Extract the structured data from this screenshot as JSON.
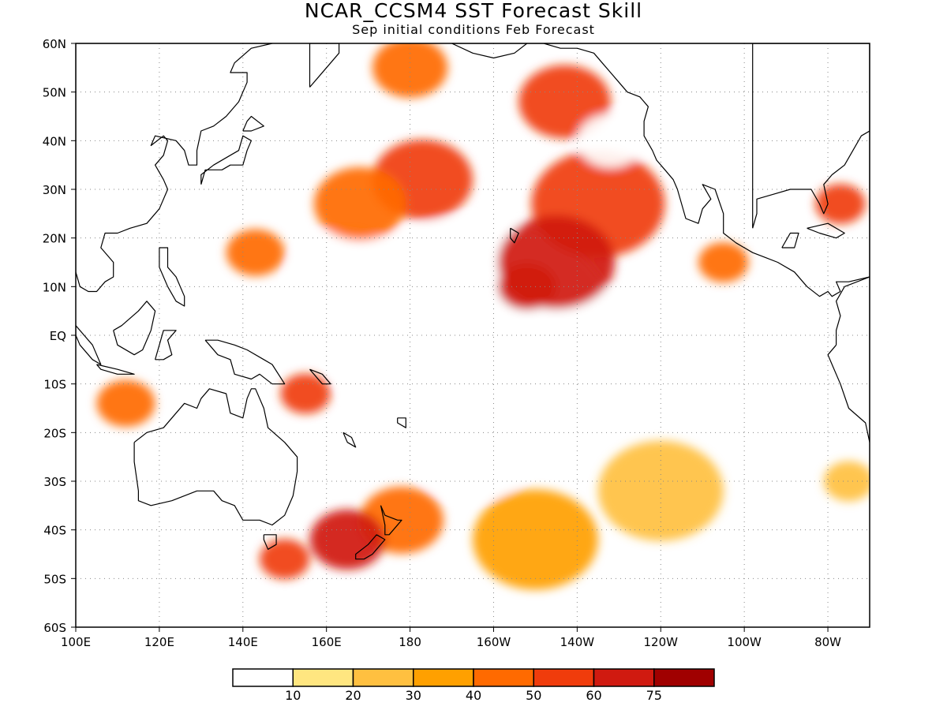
{
  "title": "NCAR_CCSM4 SST Forecast Skill",
  "subtitle": "Sep initial conditions  Feb Forecast",
  "map": {
    "projection": "cylindrical-equidistant",
    "lon_range_east": [
      100,
      290
    ],
    "lat_range": [
      -60,
      60
    ],
    "grid": "dotted",
    "lat_ticks": [
      "60N",
      "50N",
      "40N",
      "30N",
      "20N",
      "10N",
      "EQ",
      "10S",
      "20S",
      "30S",
      "40S",
      "50S",
      "60S"
    ],
    "lon_ticks": [
      "100E",
      "120E",
      "140E",
      "160E",
      "180",
      "160W",
      "140W",
      "120W",
      "100W",
      "80W"
    ]
  },
  "colorbar": {
    "colors": [
      "#ffffff",
      "#ffe680",
      "#ffc040",
      "#ffa000",
      "#ff6a00",
      "#f03c0c",
      "#d01a10",
      "#a00000"
    ],
    "labels": [
      "10",
      "20",
      "30",
      "40",
      "50",
      "60",
      "75"
    ]
  },
  "chart_data": {
    "type": "heatmap",
    "title": "NCAR_CCSM4 SST Forecast Skill",
    "subtitle": "Sep initial conditions  Feb Forecast",
    "xlabel": "",
    "ylabel": "",
    "x_range_deg_east": [
      100,
      290
    ],
    "y_range_deg": [
      -60,
      60
    ],
    "contour_levels": [
      10,
      20,
      30,
      40,
      50,
      60,
      75
    ],
    "regions": [
      {
        "lon": 215,
        "lat": 15,
        "skill": 60,
        "r": 14
      },
      {
        "lon": 225,
        "lat": 27,
        "skill": 55,
        "r": 16
      },
      {
        "lon": 217,
        "lat": 48,
        "skill": 55,
        "r": 11
      },
      {
        "lon": 208,
        "lat": 10,
        "skill": 62,
        "r": 7
      },
      {
        "lon": 228,
        "lat": 40,
        "skill": 5,
        "r": 8
      },
      {
        "lon": 183,
        "lat": 32,
        "skill": 50,
        "r": 12
      },
      {
        "lon": 168,
        "lat": 27,
        "skill": 45,
        "r": 11
      },
      {
        "lon": 180,
        "lat": 55,
        "skill": 45,
        "r": 9
      },
      {
        "lon": 143,
        "lat": 17,
        "skill": 45,
        "r": 7
      },
      {
        "lon": 165,
        "lat": 12,
        "skill": 5,
        "r": 14
      },
      {
        "lon": 195,
        "lat": 0,
        "skill": 5,
        "r": 35
      },
      {
        "lon": 165,
        "lat": -42,
        "skill": 60,
        "r": 9
      },
      {
        "lon": 178,
        "lat": -38,
        "skill": 45,
        "r": 10
      },
      {
        "lon": 150,
        "lat": -46,
        "skill": 50,
        "r": 6
      },
      {
        "lon": 155,
        "lat": -12,
        "skill": 50,
        "r": 6
      },
      {
        "lon": 112,
        "lat": -14,
        "skill": 45,
        "r": 7
      },
      {
        "lon": 210,
        "lat": -42,
        "skill": 30,
        "r": 15
      },
      {
        "lon": 240,
        "lat": -32,
        "skill": 20,
        "r": 15
      },
      {
        "lon": 195,
        "lat": -24,
        "skill": 5,
        "r": 14
      },
      {
        "lon": 283,
        "lat": 27,
        "skill": 50,
        "r": 6
      },
      {
        "lon": 285,
        "lat": -30,
        "skill": 20,
        "r": 6
      },
      {
        "lon": 255,
        "lat": 15,
        "skill": 45,
        "r": 6
      }
    ]
  }
}
